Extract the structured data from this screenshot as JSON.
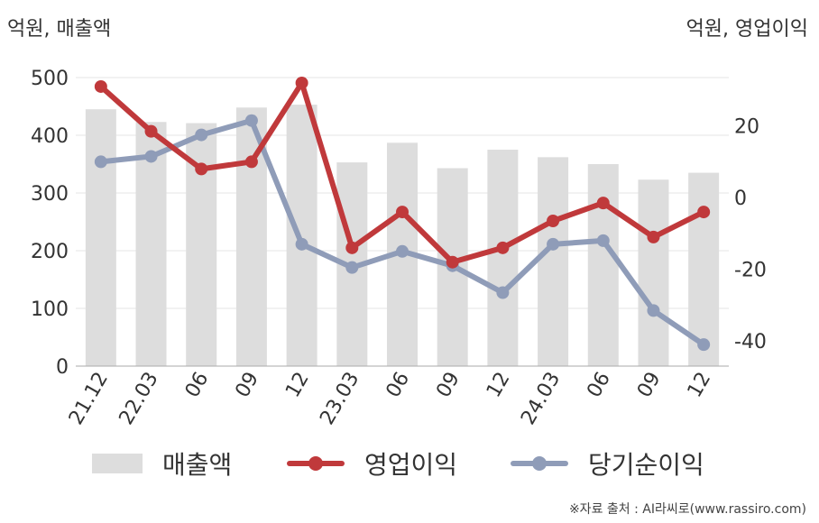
{
  "units": {
    "left": "억원, 매출액",
    "right": "억원, 영업이익"
  },
  "source": "※자료 출처 : AI라씨로(www.rassiro.com)",
  "chart_data": {
    "type": "bar+line",
    "categories": [
      "21.12",
      "22.03",
      "06",
      "09",
      "12",
      "23.03",
      "06",
      "09",
      "12",
      "24.03",
      "06",
      "09",
      "12"
    ],
    "left_axis": {
      "min": 0,
      "max": 500,
      "ticks": [
        0,
        100,
        200,
        300,
        400,
        500
      ]
    },
    "right_axis": {
      "min": -47,
      "max": 33.5,
      "ticks": [
        -40,
        -20,
        0,
        20
      ]
    },
    "series": [
      {
        "name": "매출액",
        "kind": "bar",
        "axis": "left",
        "color": "#dddddd",
        "values": [
          445,
          423,
          421,
          448,
          453,
          353,
          387,
          343,
          375,
          362,
          350,
          323,
          335
        ]
      },
      {
        "name": "영업이익",
        "kind": "line",
        "axis": "right",
        "color": "#c0393b",
        "values": [
          31,
          18.5,
          8,
          10,
          32,
          -14,
          -4,
          -18,
          -14,
          -6.5,
          -1.5,
          -11,
          -4
        ]
      },
      {
        "name": "당기순이익",
        "kind": "line",
        "axis": "right",
        "color": "#8f9cb8",
        "values": [
          10,
          11.5,
          17.5,
          21.5,
          -13,
          -19.5,
          -15,
          -19,
          -26.5,
          -13,
          -12,
          -31.5,
          -41
        ]
      }
    ],
    "grid": true,
    "legend": "bottom"
  }
}
